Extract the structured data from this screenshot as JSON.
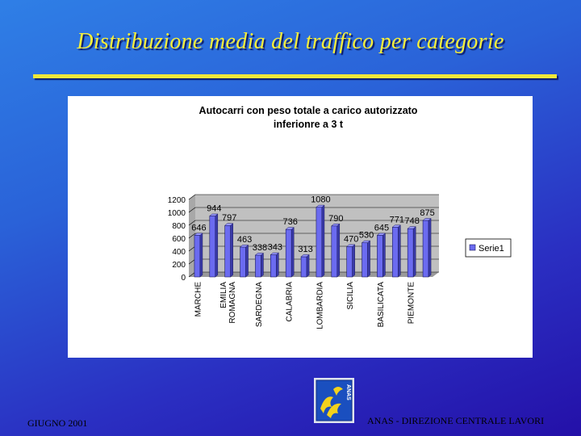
{
  "slide": {
    "title": "Distribuzione media del traffico per categorie",
    "footer_left": "GIUGNO 2001",
    "footer_right": "ANAS - DIREZIONE CENTRALE LAVORI",
    "logo_text": "ANAS"
  },
  "colors": {
    "title": "#f6ee3a",
    "bar_front": "#6b6bf0",
    "bar_side": "#3a3aa8",
    "bar_top": "#9a9aff",
    "plot_back": "#c0c0c0",
    "logo_bg": "#1a4fbf",
    "logo_yellow": "#f2d21c"
  },
  "chart_data": {
    "type": "bar",
    "title": "Autocarri con peso totale a carico autorizzato inferionre a 3 t",
    "title_lines": [
      "Autocarri con peso totale a carico autorizzato",
      "inferionre a 3 t"
    ],
    "categories": [
      "MARCHE",
      "",
      "EMILIA ROMAGNA",
      "",
      "SARDEGNA",
      "",
      "CALABRIA",
      "",
      "LOMBARDIA",
      "",
      "SICILIA",
      "",
      "BASILICATA",
      "",
      "PIEMONTE",
      ""
    ],
    "series": [
      {
        "name": "Serie1",
        "values": [
          646,
          944,
          797,
          463,
          338,
          343,
          736,
          313,
          1080,
          790,
          470,
          530,
          645,
          771,
          748,
          875
        ]
      }
    ],
    "ylim": [
      0,
      1200
    ],
    "yticks": [
      0,
      200,
      400,
      600,
      800,
      1000,
      1200
    ],
    "grid": true,
    "legend_position": "right"
  }
}
